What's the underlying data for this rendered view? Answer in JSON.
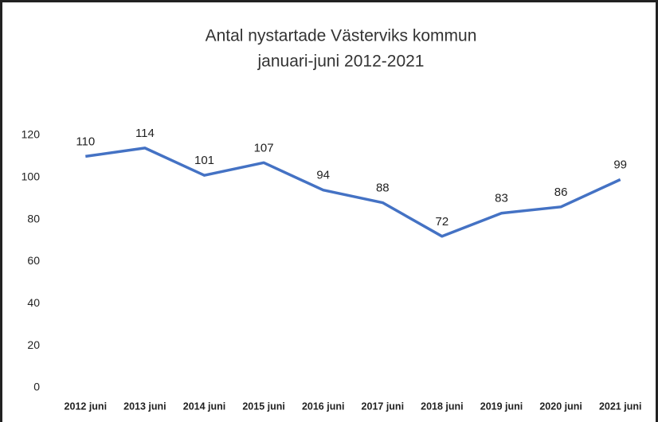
{
  "chart_data": {
    "type": "line",
    "title": "Antal nystartade Västerviks kommun",
    "subtitle": "januari-juni 2012-2021",
    "categories": [
      "2012 juni",
      "2013 juni",
      "2014 juni",
      "2015 juni",
      "2016 juni",
      "2017 juni",
      "2018 juni",
      "2019 juni",
      "2020 juni",
      "2021 juni"
    ],
    "values": [
      110,
      114,
      101,
      107,
      94,
      88,
      72,
      83,
      86,
      99
    ],
    "color": "#4472c4",
    "ylim": [
      0,
      120
    ],
    "yticks": [
      0,
      20,
      40,
      60,
      80,
      100,
      120
    ],
    "grid": false
  }
}
